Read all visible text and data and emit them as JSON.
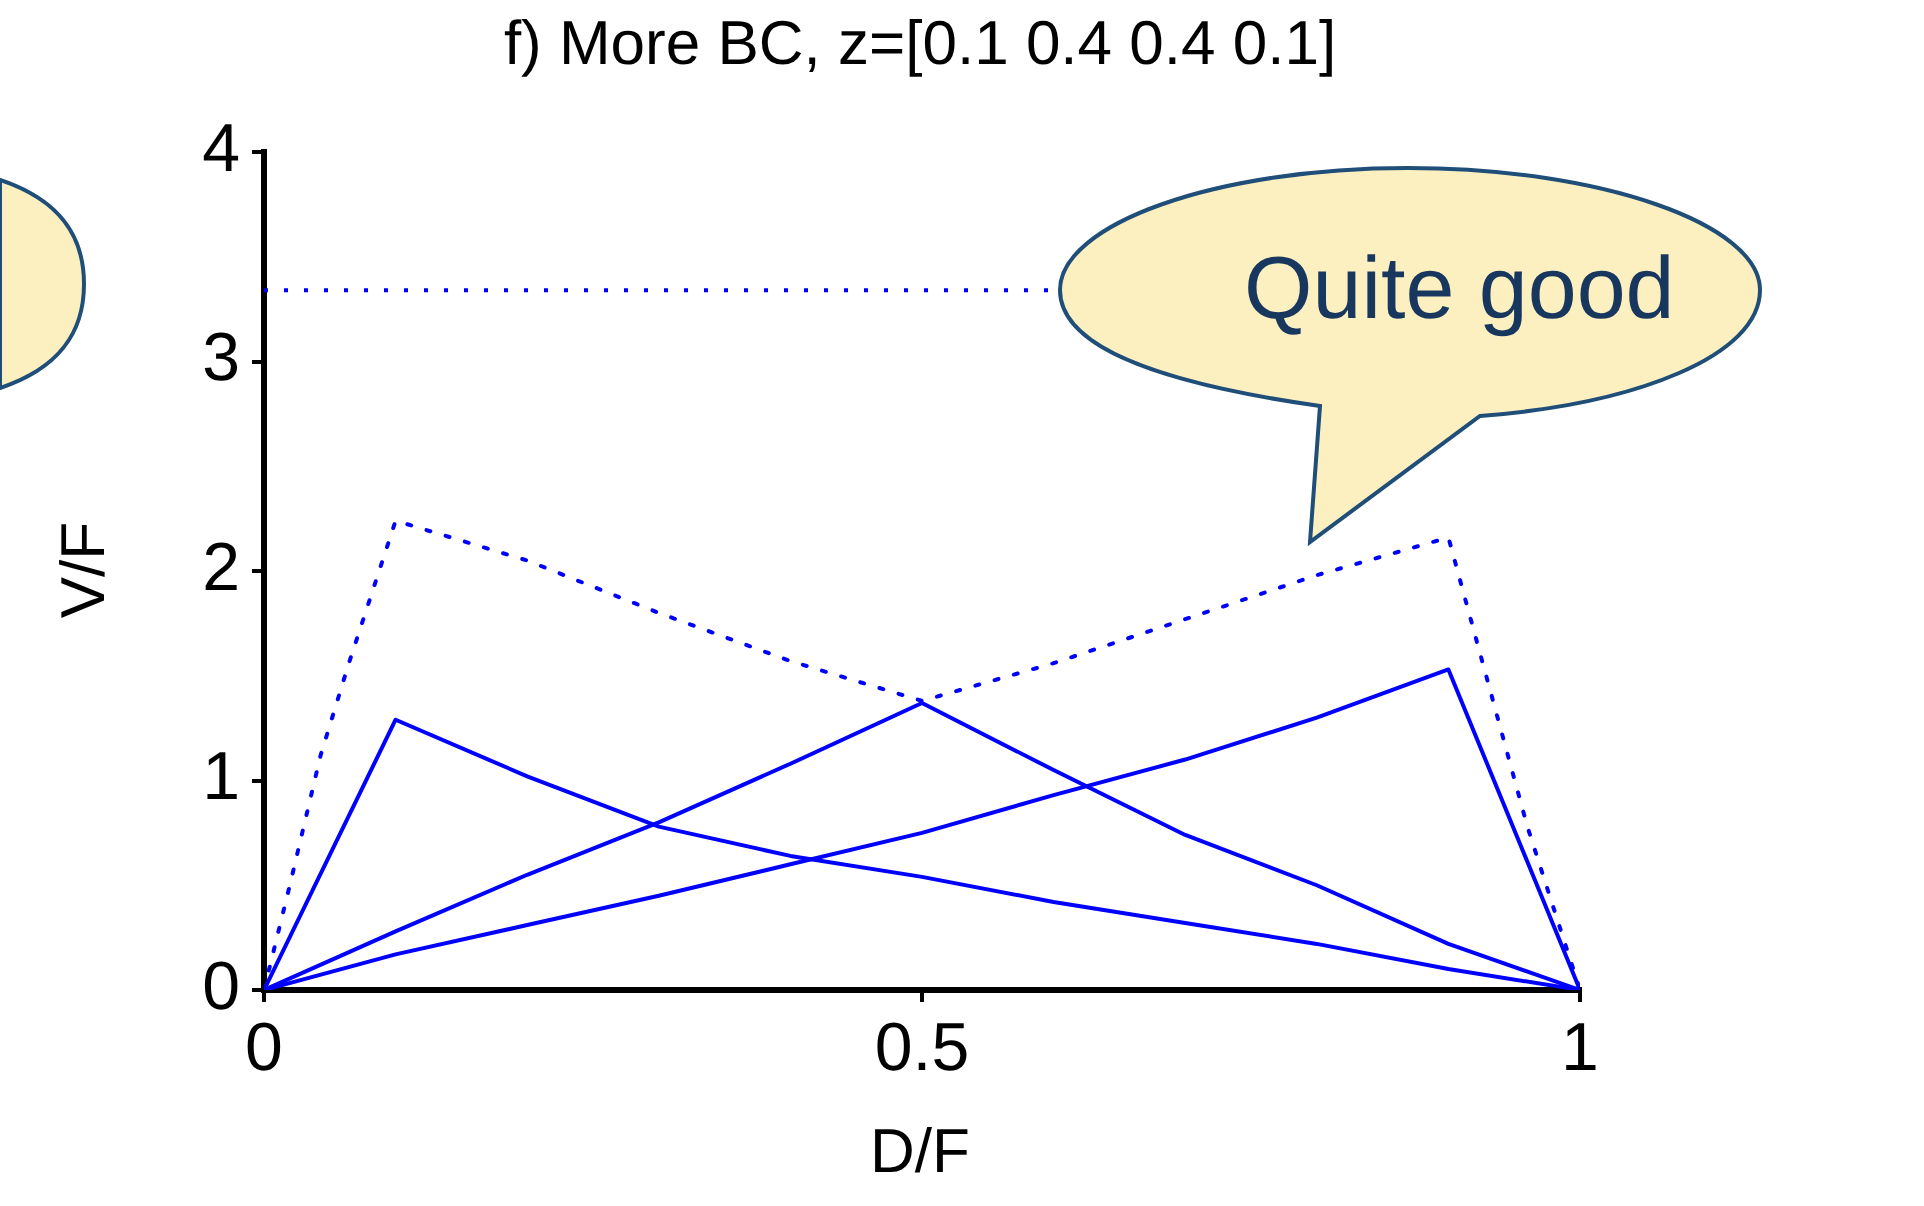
{
  "chart_data": {
    "type": "line",
    "title": "f) More BC, z=[0.1 0.4 0.4 0.1]",
    "xlabel": "D/F",
    "ylabel": "V/F",
    "xlim": [
      0,
      1
    ],
    "xticks": [
      0,
      0.5,
      1
    ],
    "ylim": [
      0,
      4
    ],
    "yticks": [
      0,
      1,
      2,
      3,
      4
    ],
    "grid": false,
    "legend": false,
    "marker": "none",
    "series": [
      {
        "color": "#0000ff",
        "line_style": "solid",
        "x": [
          0,
          0.1,
          0.2,
          0.3,
          0.4,
          0.5,
          0.6,
          0.7,
          0.8,
          0.9,
          1
        ],
        "values": [
          0,
          1.29,
          1.02,
          0.78,
          0.64,
          0.54,
          0.42,
          0.32,
          0.22,
          0.1,
          0
        ]
      },
      {
        "color": "#0000ff",
        "line_style": "solid",
        "x": [
          0,
          0.1,
          0.2,
          0.3,
          0.4,
          0.5,
          0.6,
          0.7,
          0.8,
          0.9,
          1
        ],
        "values": [
          0,
          0.28,
          0.55,
          0.8,
          1.08,
          1.37,
          1.05,
          0.74,
          0.5,
          0.22,
          0
        ]
      },
      {
        "color": "#0000ff",
        "line_style": "solid",
        "x": [
          0,
          0.1,
          0.2,
          0.3,
          0.4,
          0.5,
          0.6,
          0.7,
          0.8,
          0.9,
          1
        ],
        "values": [
          0,
          0.17,
          0.31,
          0.45,
          0.6,
          0.75,
          0.93,
          1.1,
          1.3,
          1.53,
          0
        ]
      },
      {
        "color": "#0000ff",
        "line_style": "dotted",
        "x": [
          0,
          0.02,
          0.043,
          0.065,
          0.1,
          0.2,
          0.3,
          0.4,
          0.5,
          0.6,
          0.7,
          0.8,
          0.9,
          0.94,
          0.96,
          1
        ],
        "values": [
          0,
          0.51,
          1.12,
          1.57,
          2.24,
          2.05,
          1.8,
          1.57,
          1.38,
          1.56,
          1.77,
          1.98,
          2.16,
          1.24,
          0.78,
          0
        ]
      }
    ],
    "ref_lines": [
      {
        "axis": "y",
        "value": 3.34,
        "color": "#0000ff",
        "line_style": "dotted"
      }
    ],
    "annotations": [
      "Quite good"
    ]
  }
}
